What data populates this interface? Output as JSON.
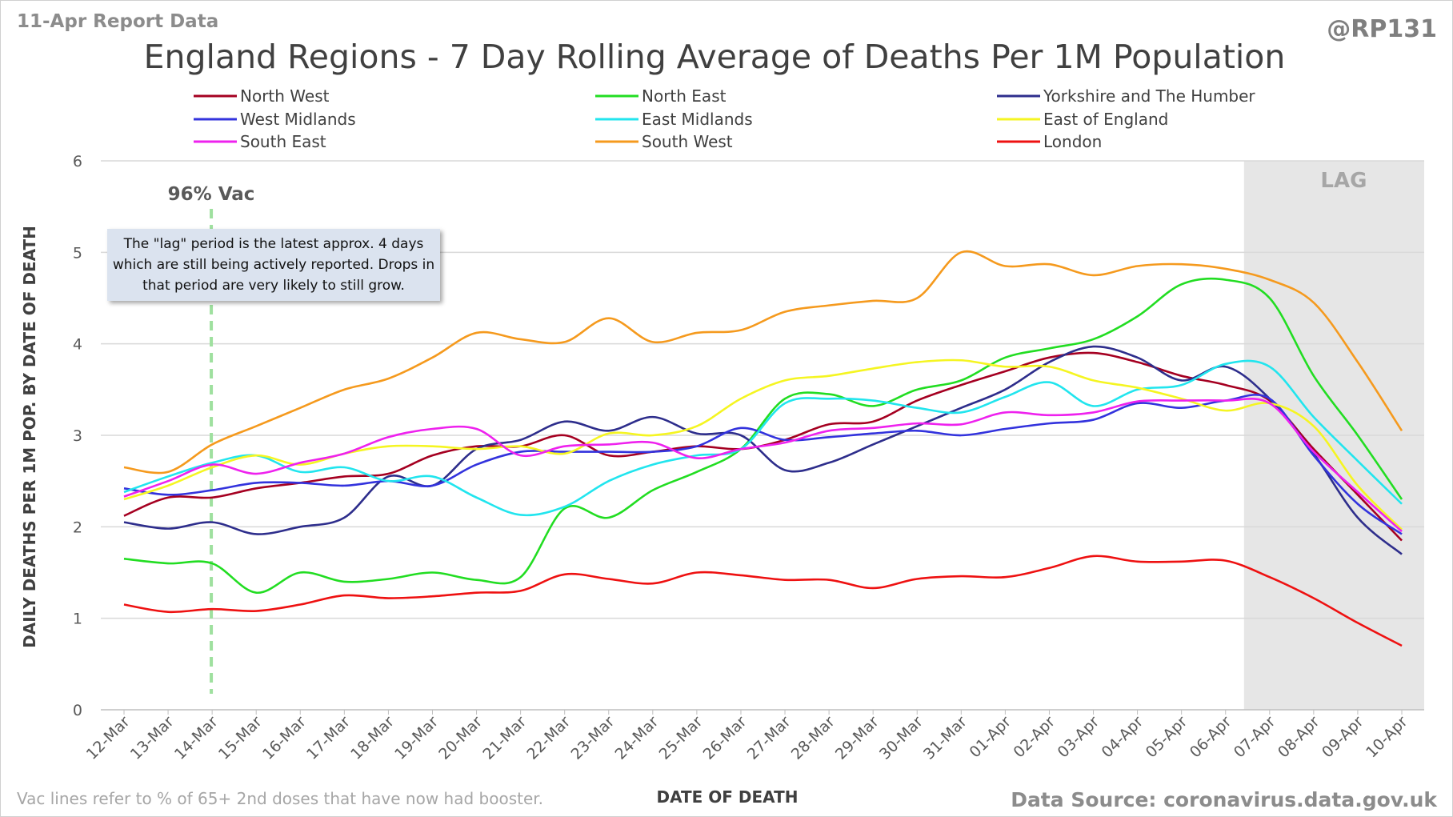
{
  "header": {
    "report_label": "11-Apr Report Data",
    "handle": "@RP131"
  },
  "footer": {
    "vac_note": "Vac lines refer to % of 65+ 2nd doses that have now had booster.",
    "source": "Data Source: coronavirus.data.gov.uk"
  },
  "annotation": {
    "text": "The \"lag\" period is the latest approx. 4 days which are still being actively reported. Drops in that period are very likely to still grow."
  },
  "chart_data": {
    "type": "line",
    "title": "England Regions - 7 Day Rolling Average of Deaths Per 1M Population",
    "xlabel": "DATE OF DEATH",
    "ylabel": "DAILY DEATHS PER 1M POP. BY DATE OF DEATH",
    "ylim": [
      0,
      6
    ],
    "yticks": [
      "0",
      "1",
      "2",
      "3",
      "4",
      "5",
      "6"
    ],
    "grid": true,
    "legend_position": "top",
    "lag_label": "LAG",
    "lag_start": "07-Apr",
    "vac_label": "96% Vac",
    "vac_date": "13-Mar",
    "x": [
      "12-Mar",
      "13-Mar",
      "14-Mar",
      "15-Mar",
      "16-Mar",
      "17-Mar",
      "18-Mar",
      "19-Mar",
      "20-Mar",
      "21-Mar",
      "22-Mar",
      "23-Mar",
      "24-Mar",
      "25-Mar",
      "26-Mar",
      "27-Mar",
      "28-Mar",
      "29-Mar",
      "30-Mar",
      "31-Mar",
      "01-Apr",
      "02-Apr",
      "03-Apr",
      "04-Apr",
      "05-Apr",
      "06-Apr",
      "07-Apr",
      "08-Apr",
      "09-Apr",
      "10-Apr"
    ],
    "series": [
      {
        "name": "North West",
        "color": "#a50021",
        "values": [
          2.12,
          2.32,
          2.32,
          2.42,
          2.48,
          2.55,
          2.58,
          2.78,
          2.88,
          2.88,
          3.0,
          2.78,
          2.82,
          2.88,
          2.85,
          2.95,
          3.12,
          3.15,
          3.38,
          3.55,
          3.7,
          3.85,
          3.9,
          3.8,
          3.65,
          3.55,
          3.38,
          2.85,
          2.35,
          1.85
        ]
      },
      {
        "name": "North East",
        "color": "#22dd22",
        "values": [
          1.65,
          1.6,
          1.6,
          1.28,
          1.5,
          1.4,
          1.43,
          1.5,
          1.42,
          1.45,
          2.2,
          2.1,
          2.4,
          2.6,
          2.85,
          3.4,
          3.45,
          3.32,
          3.5,
          3.6,
          3.85,
          3.95,
          4.05,
          4.3,
          4.65,
          4.7,
          4.5,
          3.65,
          3.0,
          2.3
        ]
      },
      {
        "name": "Yorkshire and The Humber",
        "color": "#2e2e8c",
        "values": [
          2.05,
          1.98,
          2.05,
          1.92,
          2.0,
          2.1,
          2.55,
          2.45,
          2.85,
          2.95,
          3.15,
          3.05,
          3.2,
          3.02,
          3.0,
          2.62,
          2.7,
          2.9,
          3.1,
          3.3,
          3.5,
          3.8,
          3.97,
          3.85,
          3.6,
          3.75,
          3.4,
          2.8,
          2.1,
          1.7
        ]
      },
      {
        "name": "West Midlands",
        "color": "#3333dd",
        "values": [
          2.42,
          2.35,
          2.4,
          2.48,
          2.48,
          2.45,
          2.5,
          2.45,
          2.68,
          2.82,
          2.82,
          2.82,
          2.82,
          2.88,
          3.08,
          2.95,
          2.98,
          3.02,
          3.05,
          3.0,
          3.07,
          3.13,
          3.17,
          3.35,
          3.3,
          3.38,
          3.4,
          2.78,
          2.25,
          1.92
        ]
      },
      {
        "name": "East Midlands",
        "color": "#22e5ee",
        "values": [
          2.38,
          2.55,
          2.7,
          2.78,
          2.6,
          2.65,
          2.5,
          2.55,
          2.32,
          2.13,
          2.22,
          2.5,
          2.68,
          2.78,
          2.85,
          3.35,
          3.4,
          3.38,
          3.3,
          3.25,
          3.42,
          3.58,
          3.32,
          3.5,
          3.55,
          3.78,
          3.75,
          3.2,
          2.72,
          2.25
        ]
      },
      {
        "name": "East of England",
        "color": "#f5f522",
        "values": [
          2.3,
          2.45,
          2.65,
          2.78,
          2.68,
          2.8,
          2.88,
          2.88,
          2.85,
          2.88,
          2.8,
          3.02,
          3.0,
          3.1,
          3.4,
          3.6,
          3.65,
          3.73,
          3.8,
          3.82,
          3.75,
          3.75,
          3.6,
          3.52,
          3.4,
          3.27,
          3.35,
          3.1,
          2.45,
          1.97
        ]
      },
      {
        "name": "South East",
        "color": "#ee22ee",
        "values": [
          2.33,
          2.5,
          2.68,
          2.58,
          2.7,
          2.8,
          2.98,
          3.07,
          3.07,
          2.78,
          2.88,
          2.9,
          2.92,
          2.75,
          2.85,
          2.92,
          3.05,
          3.08,
          3.13,
          3.12,
          3.25,
          3.22,
          3.25,
          3.37,
          3.38,
          3.38,
          3.35,
          2.82,
          2.38,
          1.95
        ]
      },
      {
        "name": "South West",
        "color": "#f59a1e",
        "values": [
          2.65,
          2.6,
          2.9,
          3.1,
          3.3,
          3.5,
          3.62,
          3.85,
          4.12,
          4.05,
          4.02,
          4.28,
          4.02,
          4.12,
          4.15,
          4.35,
          4.42,
          4.47,
          4.5,
          5.0,
          4.85,
          4.87,
          4.75,
          4.85,
          4.87,
          4.82,
          4.7,
          4.45,
          3.8,
          3.05
        ]
      },
      {
        "name": "London",
        "color": "#ee1111",
        "values": [
          1.15,
          1.07,
          1.1,
          1.08,
          1.15,
          1.25,
          1.22,
          1.24,
          1.28,
          1.3,
          1.48,
          1.43,
          1.38,
          1.5,
          1.47,
          1.42,
          1.42,
          1.33,
          1.43,
          1.46,
          1.45,
          1.55,
          1.68,
          1.62,
          1.62,
          1.63,
          1.45,
          1.22,
          0.95,
          0.7
        ]
      }
    ]
  }
}
